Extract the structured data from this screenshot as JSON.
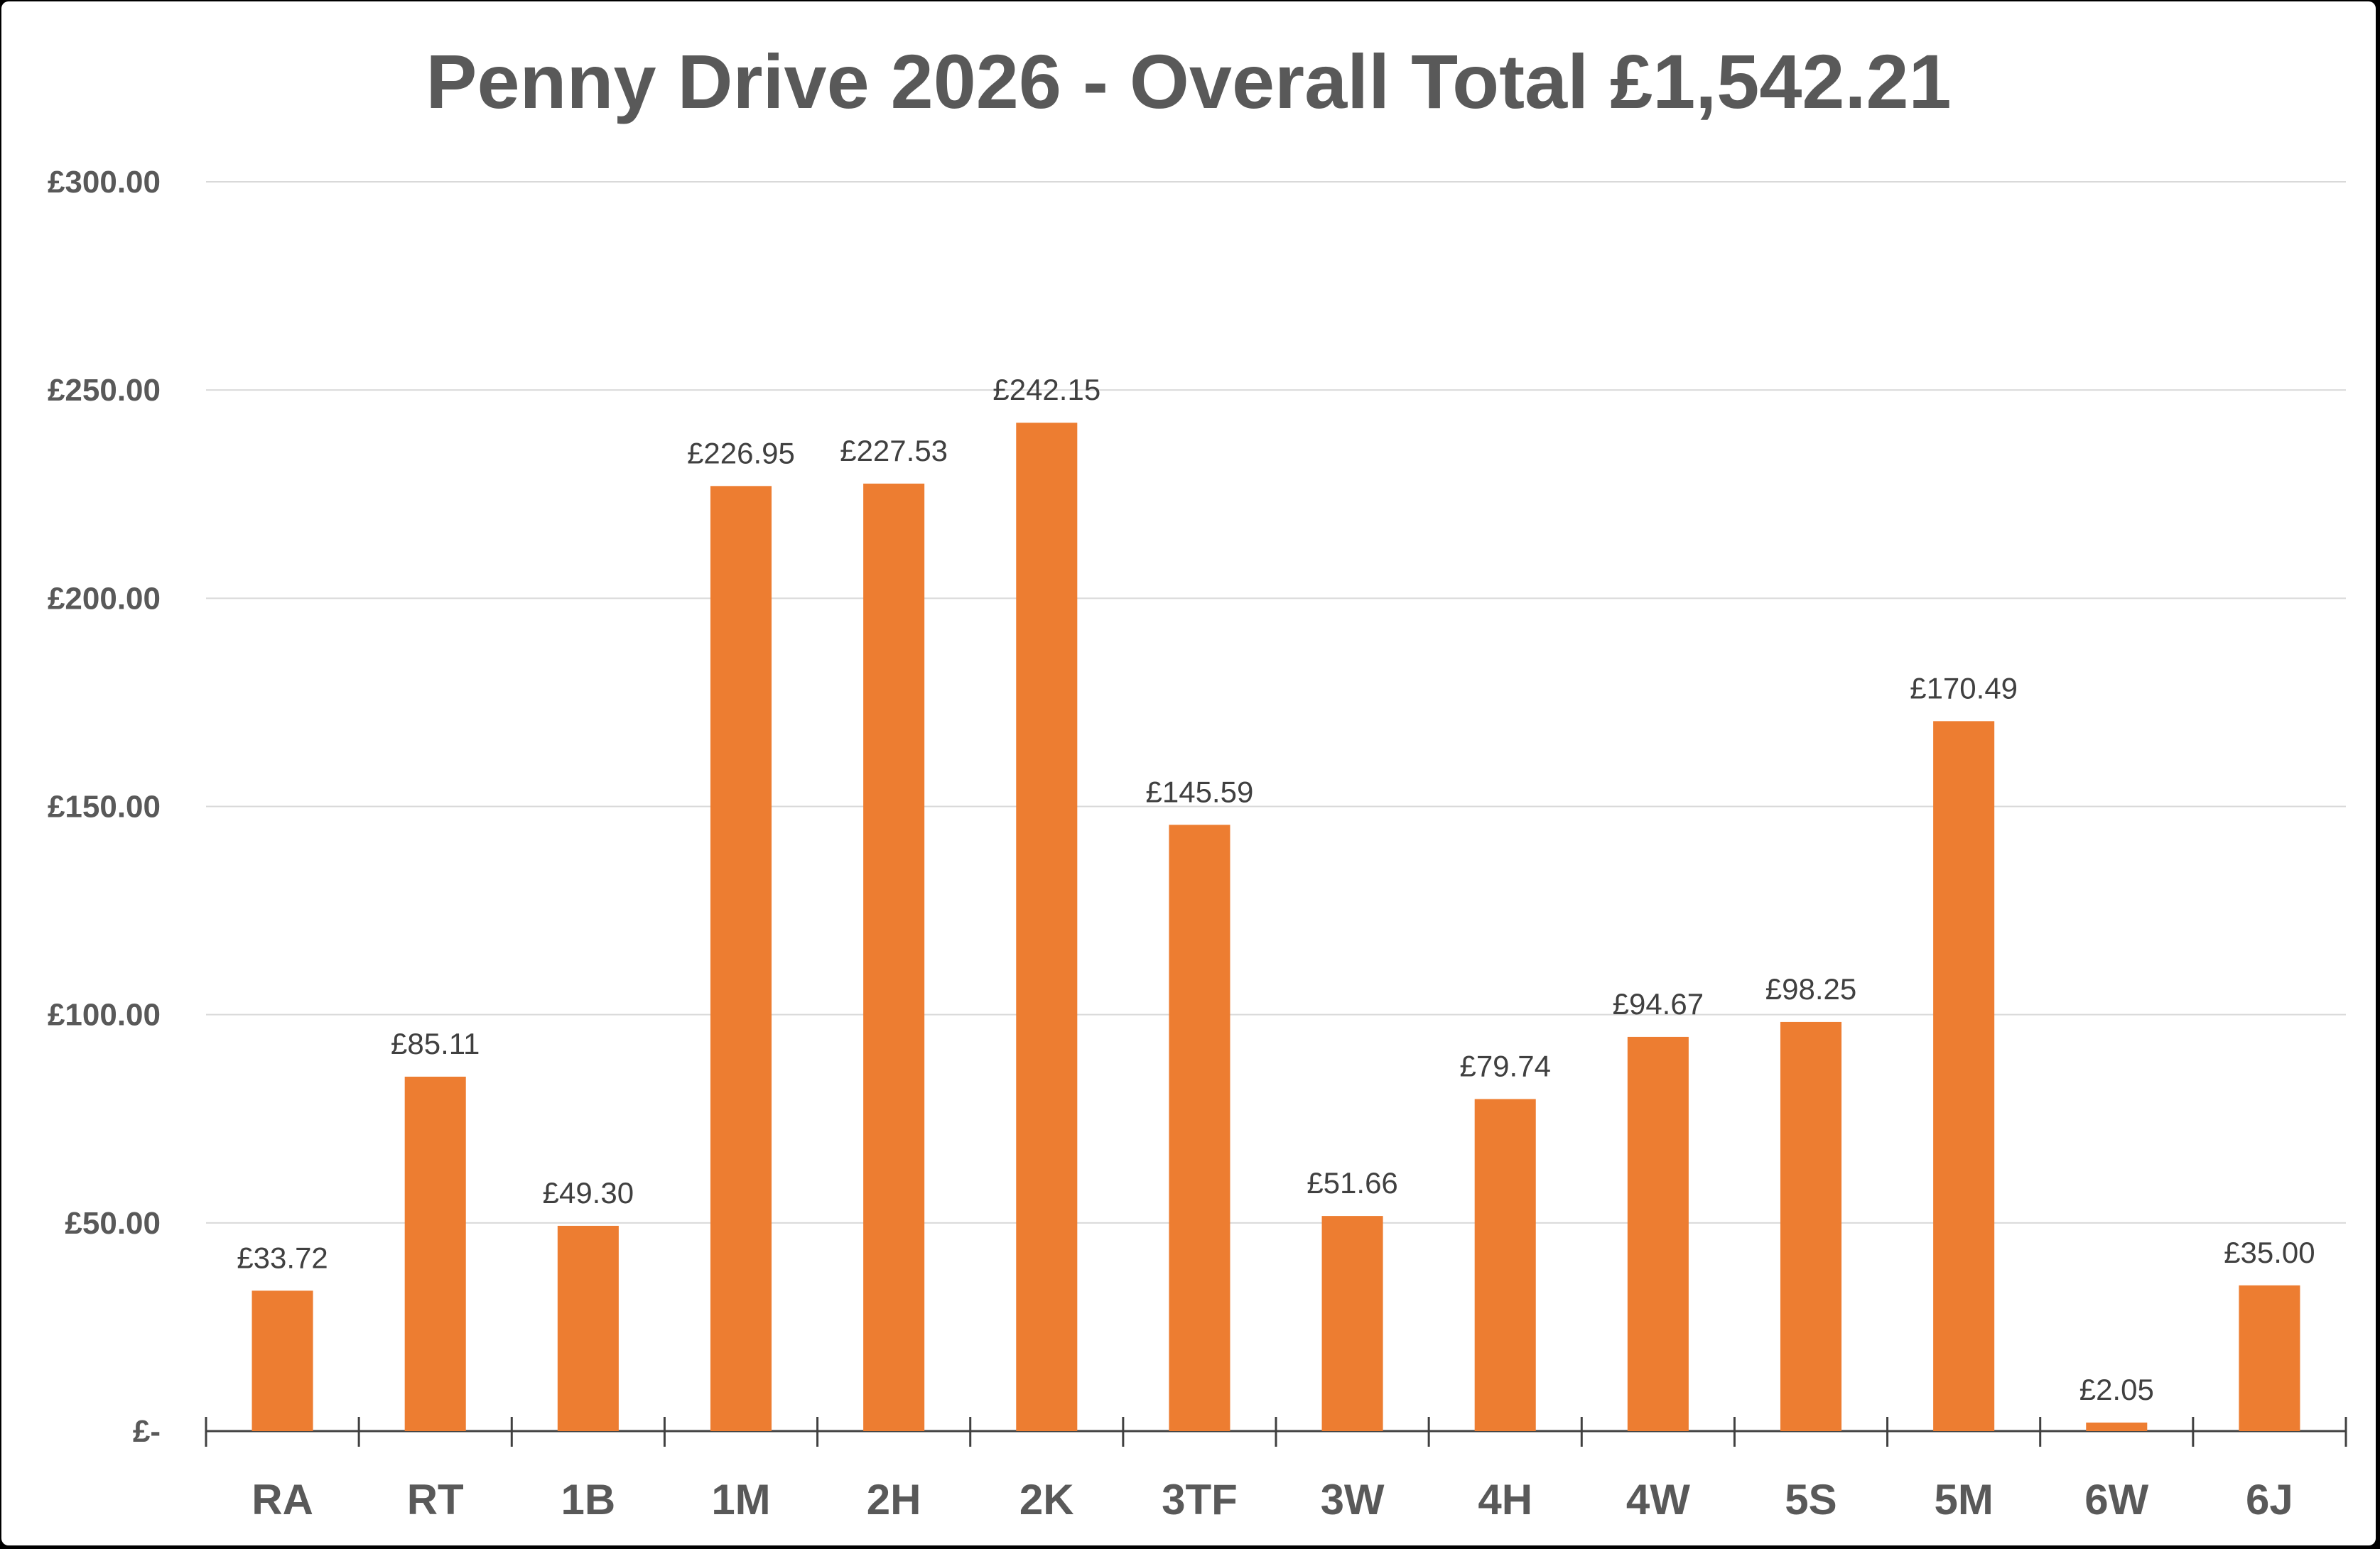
{
  "chart_data": {
    "type": "bar",
    "title": "Penny Drive 2026 - Overall Total £1,542.21",
    "xlabel": "",
    "ylabel": "",
    "ylim": [
      0,
      300
    ],
    "y_ticks": [
      0,
      50,
      100,
      150,
      200,
      250,
      300
    ],
    "y_tick_labels": [
      "£-",
      "£50.00",
      "£100.00",
      "£150.00",
      "£200.00",
      "£250.00",
      "£300.00"
    ],
    "grid": true,
    "legend": "none",
    "bar_color": "#ED7D31",
    "categories": [
      "RA",
      "RT",
      "1B",
      "1M",
      "2H",
      "2K",
      "3TF",
      "3W",
      "4H",
      "4W",
      "5S",
      "5M",
      "6W",
      "6J"
    ],
    "values": [
      33.72,
      85.11,
      49.3,
      226.95,
      227.53,
      242.15,
      145.59,
      51.66,
      79.74,
      94.67,
      98.25,
      170.49,
      2.05,
      35.0
    ],
    "data_labels": [
      "£33.72",
      "£85.11",
      "£49.30",
      "£226.95",
      "£227.53",
      "£242.15",
      "£145.59",
      "£51.66",
      "£79.74",
      "£94.67",
      "£98.25",
      "£170.49",
      "£2.05",
      "£35.00"
    ]
  }
}
